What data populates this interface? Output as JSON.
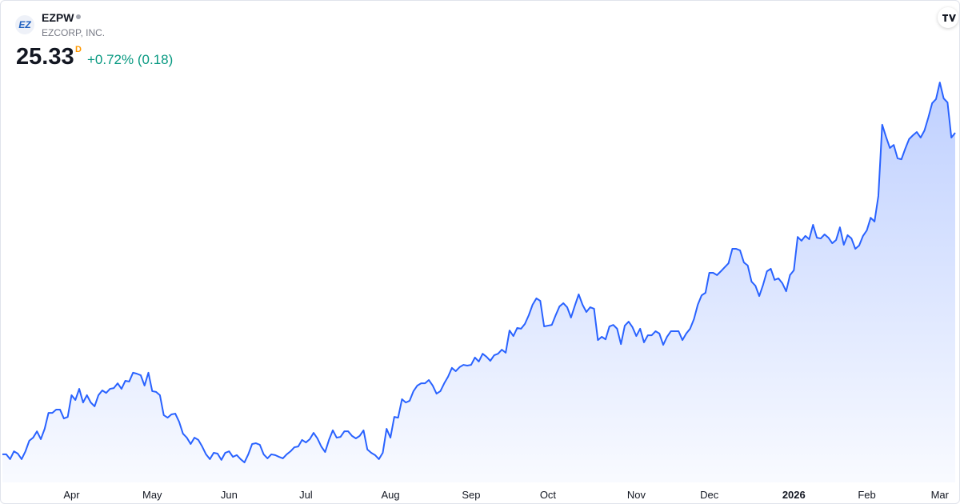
{
  "header": {
    "logo": "EZ",
    "symbol": "EZPW",
    "company": "EZCORP, INC.",
    "price": "25.33",
    "interval": "D",
    "change": "+0.72% (0.18)"
  },
  "chart_data": {
    "type": "area",
    "color": "#2962ff",
    "values": [
      12.61,
      12.61,
      12.42,
      12.73,
      12.64,
      12.42,
      12.73,
      13.15,
      13.27,
      13.52,
      13.21,
      13.62,
      14.25,
      14.25,
      14.38,
      14.38,
      14.03,
      14.09,
      14.95,
      14.76,
      15.2,
      14.66,
      14.95,
      14.66,
      14.51,
      14.95,
      15.14,
      15.04,
      15.2,
      15.23,
      15.42,
      15.2,
      15.52,
      15.49,
      15.84,
      15.8,
      15.74,
      15.33,
      15.84,
      15.11,
      15.08,
      14.95,
      14.16,
      14.06,
      14.19,
      14.22,
      13.9,
      13.43,
      13.27,
      13.02,
      13.27,
      13.18,
      12.92,
      12.61,
      12.42,
      12.67,
      12.64,
      12.39,
      12.67,
      12.73,
      12.51,
      12.58,
      12.42,
      12.29,
      12.61,
      13.02,
      13.05,
      12.99,
      12.61,
      12.45,
      12.61,
      12.58,
      12.51,
      12.45,
      12.61,
      12.73,
      12.89,
      12.92,
      13.18,
      13.08,
      13.21,
      13.46,
      13.24,
      12.92,
      12.7,
      13.18,
      13.56,
      13.27,
      13.3,
      13.52,
      13.52,
      13.34,
      13.24,
      13.34,
      13.56,
      12.8,
      12.67,
      12.58,
      12.42,
      12.67,
      13.62,
      13.27,
      14.09,
      14.06,
      14.79,
      14.66,
      14.73,
      15.11,
      15.33,
      15.42,
      15.42,
      15.55,
      15.33,
      15.01,
      15.11,
      15.42,
      15.68,
      16.03,
      15.9,
      16.06,
      16.15,
      16.12,
      16.15,
      16.44,
      16.28,
      16.59,
      16.47,
      16.31,
      16.53,
      16.59,
      16.75,
      16.63,
      17.51,
      17.29,
      17.61,
      17.58,
      17.77,
      18.11,
      18.53,
      18.78,
      18.68,
      17.67,
      17.7,
      17.73,
      18.11,
      18.46,
      18.59,
      18.43,
      18.02,
      18.49,
      18.94,
      18.53,
      18.24,
      18.43,
      18.37,
      17.13,
      17.26,
      17.16,
      17.67,
      17.73,
      17.58,
      16.97,
      17.7,
      17.86,
      17.64,
      17.29,
      17.58,
      17.04,
      17.32,
      17.32,
      17.48,
      17.39,
      16.94,
      17.26,
      17.48,
      17.48,
      17.48,
      17.13,
      17.39,
      17.58,
      17.96,
      18.53,
      18.9,
      19.0,
      19.79,
      19.79,
      19.7,
      19.85,
      20.01,
      20.17,
      20.74,
      20.74,
      20.68,
      20.2,
      20.08,
      19.44,
      19.28,
      18.87,
      19.32,
      19.85,
      19.95,
      19.51,
      19.57,
      19.38,
      19.06,
      19.7,
      19.89,
      21.21,
      21.06,
      21.25,
      21.12,
      21.69,
      21.18,
      21.15,
      21.31,
      21.18,
      20.96,
      21.09,
      21.59,
      20.9,
      21.28,
      21.15,
      20.74,
      20.87,
      21.25,
      21.47,
      21.97,
      21.82,
      22.83,
      25.65,
      25.17,
      24.73,
      24.85,
      24.32,
      24.28,
      24.7,
      25.08,
      25.23,
      25.36,
      25.14,
      25.42,
      25.93,
      26.5,
      26.66,
      27.32,
      26.69,
      26.53,
      25.14,
      25.33
    ],
    "xlim": [
      0,
      248
    ],
    "ylim": [
      11.5,
      28
    ],
    "xticks": [
      {
        "value": 18,
        "label": "Apr"
      },
      {
        "value": 39,
        "label": "May"
      },
      {
        "value": 59,
        "label": "Jun"
      },
      {
        "value": 79,
        "label": "Jul"
      },
      {
        "value": 101,
        "label": "Aug"
      },
      {
        "value": 122,
        "label": "Sep"
      },
      {
        "value": 142,
        "label": "Oct"
      },
      {
        "value": 165,
        "label": "Nov"
      },
      {
        "value": 184,
        "label": "Dec"
      },
      {
        "value": 206,
        "label": "2026"
      },
      {
        "value": 225,
        "label": "Feb"
      },
      {
        "value": 244,
        "label": "Mar"
      }
    ]
  }
}
